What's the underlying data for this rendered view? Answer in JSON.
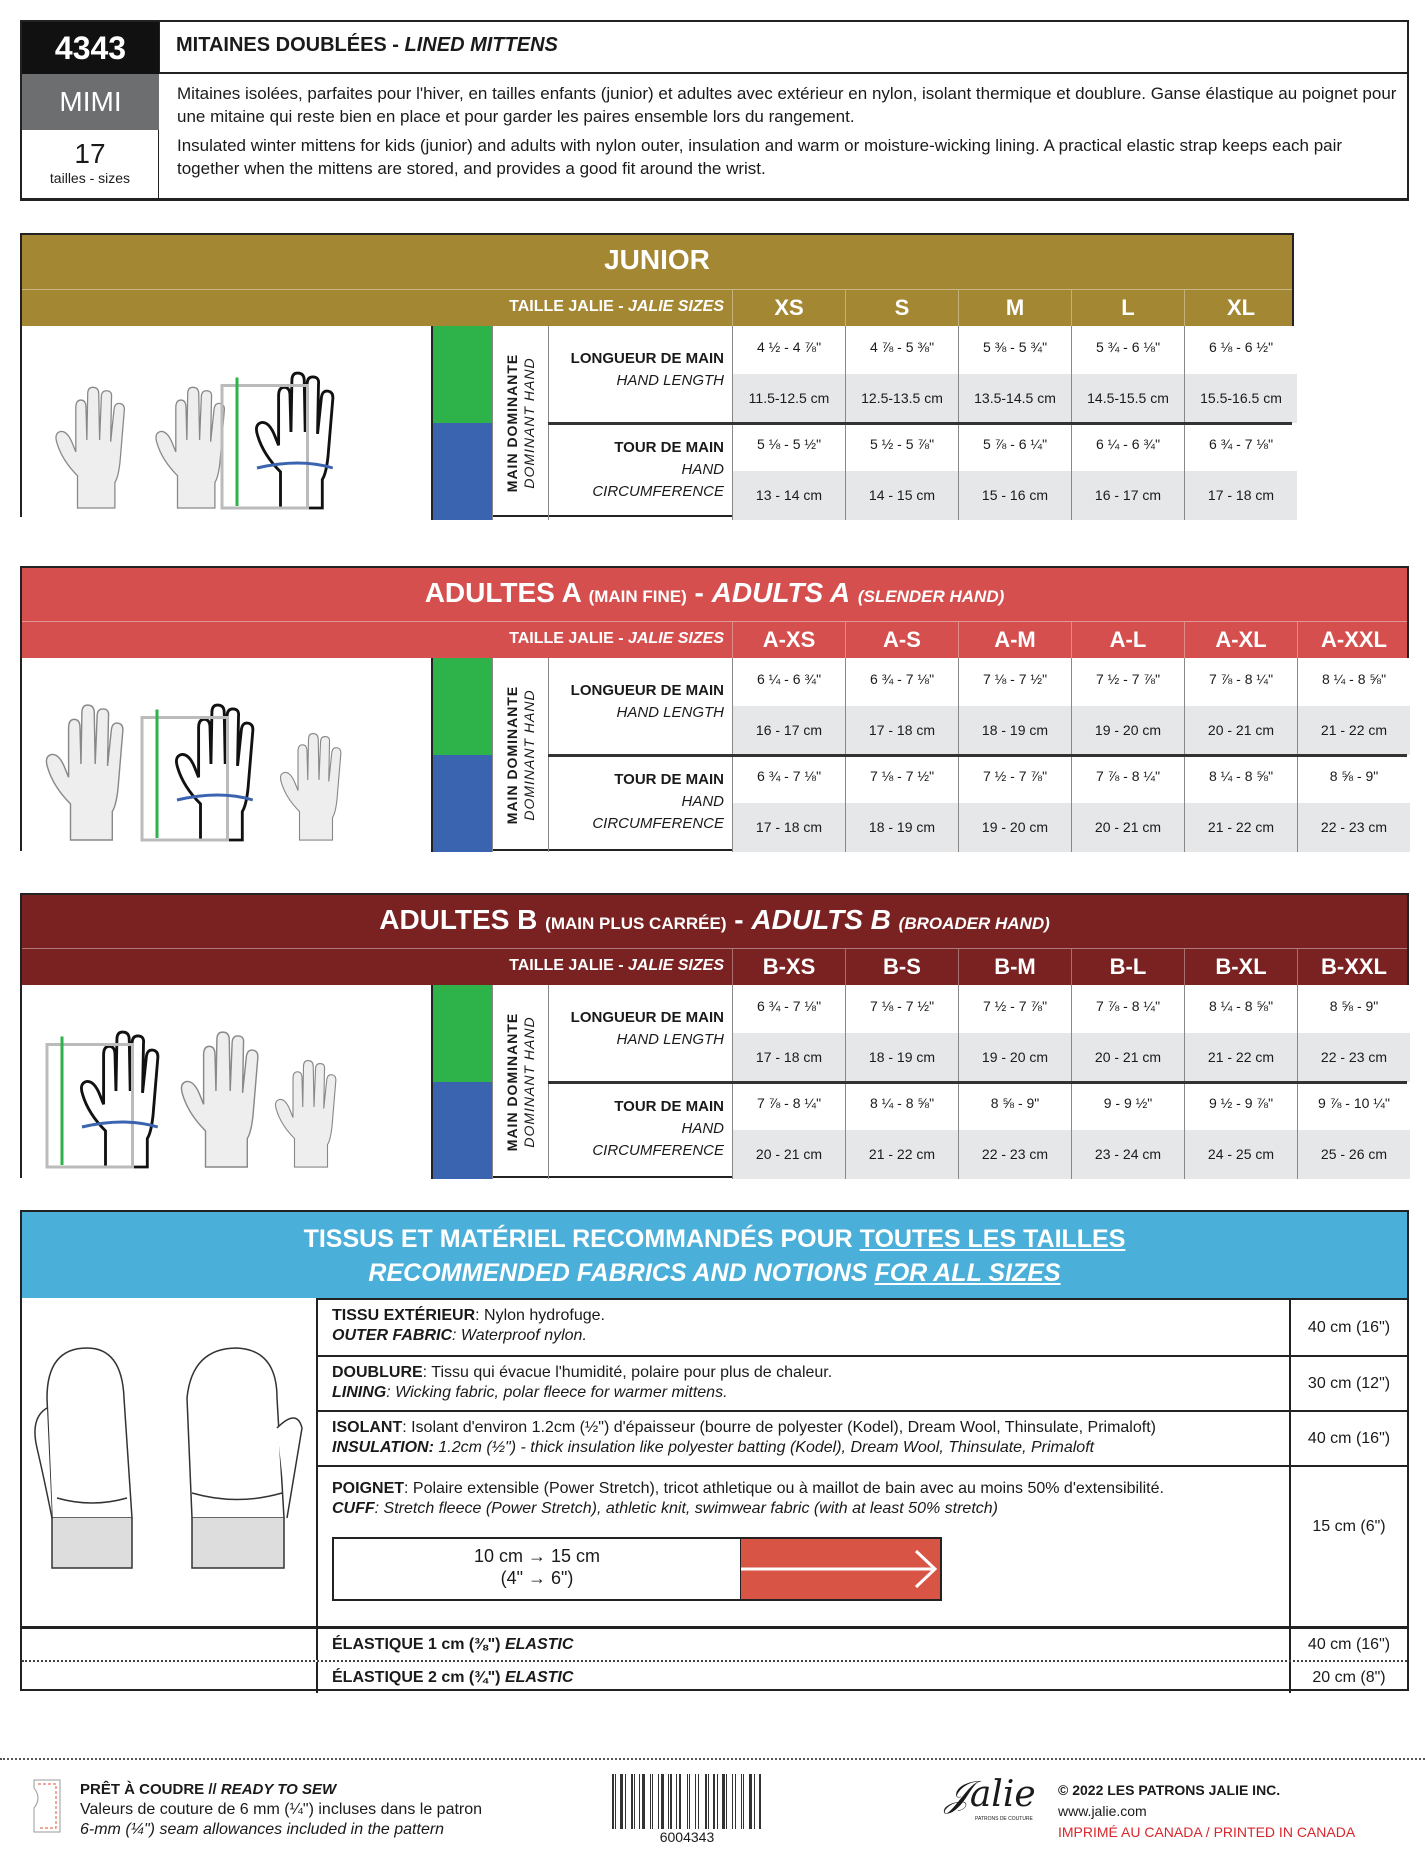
{
  "header": {
    "code": "4343",
    "name": "MIMI",
    "size_count": "17",
    "size_label": "tailles - sizes",
    "title_fr": "MITAINES DOUBLÉES - ",
    "title_en": "LINED MITTENS",
    "desc_fr": "Mitaines isolées, parfaites pour l'hiver, en tailles enfants (junior) et adultes avec extérieur en nylon, isolant thermique et doublure. Ganse élastique au poignet pour une mitaine qui reste bien en place et pour garder les paires ensemble lors du rangement.",
    "desc_en": "Insulated winter mittens for kids (junior) and adults with nylon outer, insulation and warm or moisture-wicking lining. A practical elastic strap keeps each pair together when the mittens are stored, and provides a good fit around the wrist."
  },
  "labels": {
    "sizes_fr": "TAILLE JALIE - ",
    "sizes_en": "JALIE SIZES",
    "dominant_fr": "MAIN DOMINANTE",
    "dominant_en": "DOMINANT HAND",
    "length_fr": "LONGUEUR DE MAIN",
    "length_en": "HAND LENGTH",
    "circ_fr": "TOUR DE MAIN",
    "circ_en1": "HAND",
    "circ_en2": "CIRCUMFERENCE"
  },
  "colors": {
    "junior": "#a38732",
    "adults_a": "#d64f4f",
    "adults_b": "#7a2121",
    "fabrics": "#4aafd9",
    "length": "#2db34a",
    "circumference": "#3a63b0"
  },
  "sections": [
    {
      "title": "JUNIOR",
      "title_fr_small": "",
      "title_en": "",
      "title_en_small": "",
      "sizes": [
        "XS",
        "S",
        "M",
        "L",
        "XL"
      ],
      "length_in": [
        "4 ½ - 4 ⅞\"",
        "4 ⅞ - 5 ⅜\"",
        "5 ⅜ - 5 ¾\"",
        "5 ¾ - 6 ⅛\"",
        "6 ⅛ - 6 ½\""
      ],
      "length_cm": [
        "11.5-12.5 cm",
        "12.5-13.5 cm",
        "13.5-14.5 cm",
        "14.5-15.5 cm",
        "15.5-16.5 cm"
      ],
      "circ_in": [
        "5 ⅛ - 5 ½\"",
        "5 ½ - 5 ⅞\"",
        "5 ⅞ - 6 ¼\"",
        "6 ¼ - 6 ¾\"",
        "6 ¾ - 7 ⅛\""
      ],
      "circ_cm": [
        "13 - 14 cm",
        "14 - 15 cm",
        "15 - 16 cm",
        "16 - 17 cm",
        "17 - 18 cm"
      ]
    },
    {
      "title": "ADULTES A",
      "title_fr_small": "(MAIN FINE)",
      "title_en": "ADULTS A",
      "title_en_small": "(SLENDER HAND)",
      "sizes": [
        "A-XS",
        "A-S",
        "A-M",
        "A-L",
        "A-XL",
        "A-XXL"
      ],
      "length_in": [
        "6 ¼ - 6 ¾\"",
        "6 ¾ - 7 ⅛\"",
        "7 ⅛ - 7 ½\"",
        "7 ½ - 7 ⅞\"",
        "7 ⅞ - 8 ¼\"",
        "8 ¼ - 8 ⅝\""
      ],
      "length_cm": [
        "16 - 17 cm",
        "17 - 18 cm",
        "18 - 19 cm",
        "19 - 20 cm",
        "20 - 21 cm",
        "21 - 22 cm"
      ],
      "circ_in": [
        "6 ¾ - 7 ⅛\"",
        "7 ⅛ - 7 ½\"",
        "7 ½ - 7 ⅞\"",
        "7 ⅞ - 8 ¼\"",
        "8 ¼ - 8 ⅝\"",
        "8 ⅝ - 9\""
      ],
      "circ_cm": [
        "17 - 18 cm",
        "18 - 19 cm",
        "19 - 20 cm",
        "20 - 21 cm",
        "21 - 22 cm",
        "22 - 23 cm"
      ]
    },
    {
      "title": "ADULTES B",
      "title_fr_small": "(MAIN PLUS CARRÉE)",
      "title_en": "ADULTS B",
      "title_en_small": "(BROADER HAND)",
      "sizes": [
        "B-XS",
        "B-S",
        "B-M",
        "B-L",
        "B-XL",
        "B-XXL"
      ],
      "length_in": [
        "6 ¾ - 7 ⅛\"",
        "7 ⅛ - 7 ½\"",
        "7 ½ - 7 ⅞\"",
        "7 ⅞ - 8 ¼\"",
        "8 ¼ - 8 ⅝\"",
        "8 ⅝ - 9\""
      ],
      "length_cm": [
        "17 - 18 cm",
        "18 - 19 cm",
        "19 - 20 cm",
        "20 - 21 cm",
        "21 - 22 cm",
        "22 - 23 cm"
      ],
      "circ_in": [
        "7 ⅞ - 8 ¼\"",
        "8 ¼ - 8 ⅝\"",
        "8 ⅝ - 9\"",
        "9 - 9 ½\"",
        "9 ½ - 9 ⅞\"",
        "9 ⅞ - 10 ¼\""
      ],
      "circ_cm": [
        "20 - 21 cm",
        "21 - 22 cm",
        "22 - 23 cm",
        "23 - 24 cm",
        "24 - 25 cm",
        "25 - 26 cm"
      ]
    }
  ],
  "fabrics": {
    "title_fr": "TISSUS ET MATÉRIEL RECOMMANDÉS POUR ",
    "title_fr_u": "TOUTES LES TAILLES",
    "title_en": "RECOMMENDED FABRICS AND NOTIONS ",
    "title_en_u": "FOR ALL SIZES",
    "rows": [
      {
        "fr_label": "TISSU EXTÉRIEUR",
        "fr": ": Nylon hydrofuge.",
        "en_label": "OUTER FABRIC",
        "en": ": Waterproof nylon.",
        "amount": "40 cm (16\")"
      },
      {
        "fr_label": "DOUBLURE",
        "fr": ": Tissu qui évacue l'humidité, polaire pour plus de chaleur.",
        "en_label": "LINING",
        "en": ":  Wicking fabric, polar fleece for warmer mittens.",
        "amount": "30 cm (12\")"
      },
      {
        "fr_label": "ISOLANT",
        "fr": ": Isolant d'environ 1.2cm (½\") d'épaisseur (bourre de polyester (Kodel), Dream Wool, Thinsulate, Primaloft)",
        "en_label": "INSULATION:",
        "en": " 1.2cm (½\") - thick insulation like polyester batting (Kodel), Dream Wool, Thinsulate, Primaloft",
        "amount": "40 cm (16\")"
      },
      {
        "fr_label": "POIGNET",
        "fr": ": Polaire extensible (Power Stretch), tricot athletique ou à maillot de bain avec au moins 50% d'extensibilité.",
        "en_label": "CUFF",
        "en": ": Stretch fleece (Power Stretch), athletic knit, swimwear fabric (with at least 50% stretch)",
        "amount": "15 cm (6\")"
      }
    ],
    "stretch_line1": "10 cm → 15 cm",
    "stretch_line2": "(4\" → 6\")",
    "elastic": [
      {
        "label": "ÉLASTIQUE 1 cm (⅜\") ",
        "label_en": "ELASTIC",
        "amount": "40 cm (16\")"
      },
      {
        "label": "ÉLASTIQUE 2 cm (¾\") ",
        "label_en": "ELASTIC",
        "amount": "20 cm (8\")"
      }
    ]
  },
  "footer": {
    "ready_fr": "PRÊT À COUDRE // ",
    "ready_en": "READY TO SEW",
    "seam_fr": "Valeurs de couture de 6 mm (¼\") incluses dans le patron",
    "seam_en": "6-mm (¼\") seam allowances included in the pattern",
    "barcode": "6004343",
    "logo": "Jalie",
    "logo_sub": "PATRONS DE COUTURE SEWING PATTERNS",
    "copyright": "© 2022 LES PATRONS JALIE INC.",
    "website": "www.jalie.com",
    "printed": "IMPRIMÉ AU CANADA / PRINTED IN CANADA"
  }
}
